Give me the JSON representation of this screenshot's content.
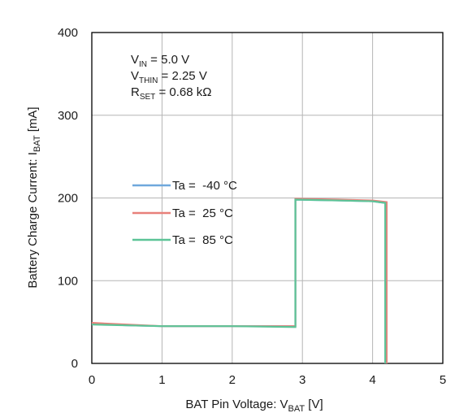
{
  "chart_data": {
    "type": "line",
    "xlabel": {
      "main": "BAT Pin Voltage: V",
      "sub": "BAT",
      "unit": " [V]"
    },
    "ylabel": {
      "main": "Battery Charge Current: I",
      "sub": "BAT",
      "unit": " [mA]"
    },
    "xlim": [
      0,
      5
    ],
    "ylim": [
      0,
      400
    ],
    "xticks": [
      "0",
      "1",
      "2",
      "3",
      "4",
      "5"
    ],
    "yticks": [
      "0",
      "100",
      "200",
      "300",
      "400"
    ],
    "xtick_values": [
      0,
      1,
      2,
      3,
      4,
      5
    ],
    "ytick_values": [
      0,
      100,
      200,
      300,
      400
    ],
    "grid": true,
    "legend_placement": "center-left",
    "annotations": [
      {
        "main": "V",
        "sub": "IN",
        "rest": " = 5.0 V"
      },
      {
        "main": "V",
        "sub": "THIN",
        "rest": " = 2.25 V"
      },
      {
        "main": "R",
        "sub": "SET",
        "rest": "  = 0.68 kΩ"
      }
    ],
    "series": [
      {
        "name": "Ta =  -40 °C",
        "color": "#6fa8dc",
        "x": [
          0,
          0.5,
          1.0,
          2.0,
          2.9,
          2.9,
          3.5,
          4.0,
          4.18,
          4.18
        ],
        "y": [
          48,
          46,
          45,
          45,
          45,
          198,
          197,
          196,
          194,
          0
        ]
      },
      {
        "name": "Ta =  25 °C",
        "color": "#e8807a",
        "x": [
          0,
          0.5,
          1.0,
          2.0,
          2.9,
          2.9,
          3.5,
          4.0,
          4.2,
          4.2
        ],
        "y": [
          49,
          47,
          45,
          45,
          45,
          199,
          198,
          197,
          195,
          0
        ]
      },
      {
        "name": "Ta =  85 °C",
        "color": "#5cc497",
        "x": [
          0,
          0.5,
          1.0,
          2.0,
          2.9,
          2.9,
          3.5,
          4.0,
          4.18,
          4.18
        ],
        "y": [
          47,
          46,
          45,
          45,
          44,
          198,
          197,
          196,
          194,
          0
        ]
      }
    ]
  }
}
